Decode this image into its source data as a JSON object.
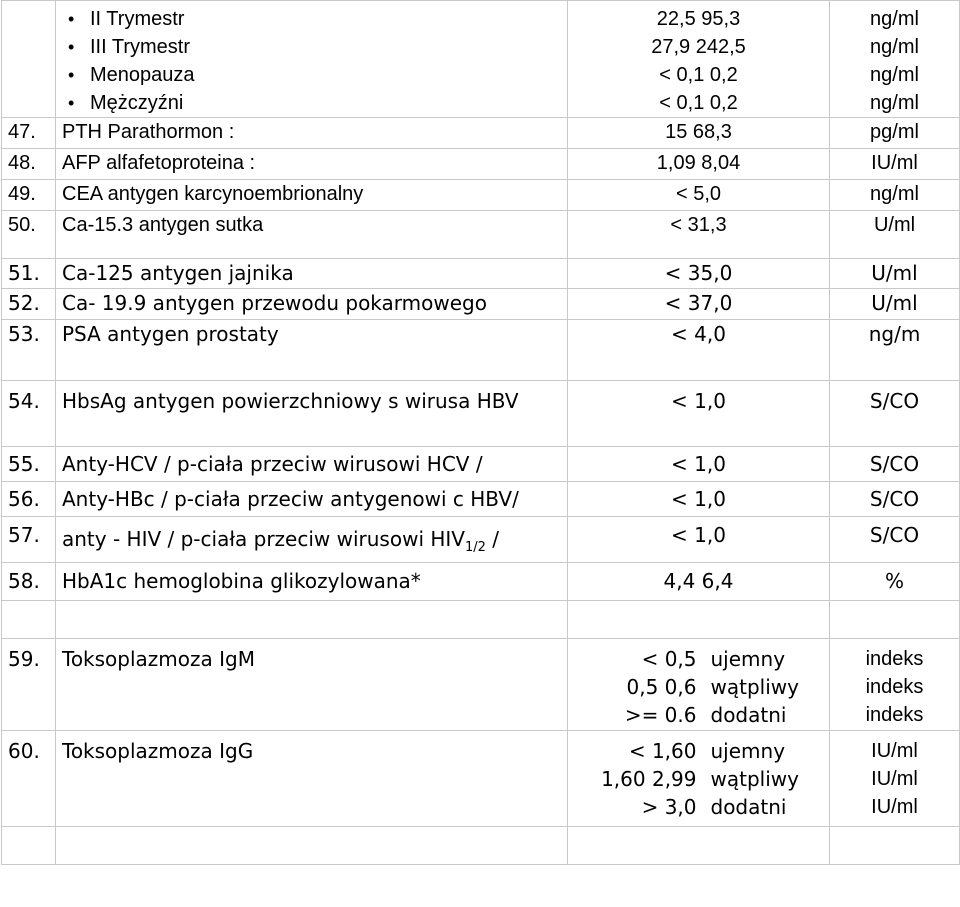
{
  "top": {
    "items": [
      {
        "label": "II Trymestr",
        "range": "22,5  95,3",
        "unit": "ng/ml"
      },
      {
        "label": "III Trymestr",
        "range": "27,9  242,5",
        "unit": "ng/ml"
      },
      {
        "label": "Menopauza",
        "range": "< 0,1  0,2",
        "unit": "ng/ml"
      },
      {
        "label": "Mężczyźni",
        "range": "< 0,1  0,2",
        "unit": "ng/ml"
      }
    ]
  },
  "rows": [
    {
      "nr": "47.",
      "name": "PTH Parathormon :",
      "range": "15  68,3",
      "unit": "pg/ml"
    },
    {
      "nr": "48.",
      "name": "AFP  alfafetoproteina :",
      "range": "1,09  8,04",
      "unit": "IU/ml"
    },
    {
      "nr": "49.",
      "name": "CEA  antygen  karcynoembrionalny",
      "range": "< 5,0",
      "unit": "ng/ml"
    },
    {
      "nr": "50.",
      "name": "Ca-15.3  antygen  sutka",
      "range": "< 31,3",
      "unit": "U/ml"
    },
    {
      "nr": "51.",
      "name": "Ca-125    antygen  jajnika",
      "range": "< 35,0",
      "unit": "U/ml"
    },
    {
      "nr": "52.",
      "name": "Ca- 19.9    antygen przewodu pokarmowego",
      "range": "< 37,0",
      "unit": "U/ml"
    },
    {
      "nr": "53.",
      "name": "PSA  antygen  prostaty",
      "range": "< 4,0",
      "unit": "ng/m"
    },
    {
      "nr": "54.",
      "name": "HbsAg antygen  powierzchniowy s wirusa HBV",
      "range": "< 1,0",
      "unit": "S/CO"
    },
    {
      "nr": "55.",
      "name": "Anty-HCV   / p-ciała przeciw wirusowi HCV /",
      "range": "< 1,0",
      "unit": "S/CO"
    },
    {
      "nr": "56.",
      "name": "Anty-HBc  / p-ciała przeciw antygenowi c HBV/",
      "range": "< 1,0",
      "unit": "S/CO"
    },
    {
      "nr": "57.",
      "name_pre": "anty - HIV / p-ciała przeciw wirusowi HIV",
      "name_sub": "1/2",
      "name_post": " /",
      "range": "< 1,0",
      "unit": "S/CO"
    },
    {
      "nr": "58.",
      "name": "HbA1c hemoglobina glikozylowana*",
      "range": "4,4  6,4",
      "unit": "%"
    }
  ],
  "toxo": [
    {
      "nr": "59.",
      "name": "Toksoplazmoza IgM",
      "lines": [
        {
          "val": "< 0,5",
          "desc": "ujemny",
          "unit": "indeks"
        },
        {
          "val": "0,5  0,6",
          "desc": "wątpliwy",
          "unit": "indeks"
        },
        {
          "val": ">= 0.6",
          "desc": "dodatni",
          "unit": "indeks"
        }
      ]
    },
    {
      "nr": "60.",
      "name": "Toksoplazmoza IgG",
      "lines": [
        {
          "val": "< 1,60",
          "desc": "ujemny",
          "unit": "IU/ml"
        },
        {
          "val": "1,60  2,99",
          "desc": "wątpliwy",
          "unit": "IU/ml"
        },
        {
          "val": "> 3,0",
          "desc": "dodatni",
          "unit": "IU/ml"
        }
      ]
    }
  ]
}
